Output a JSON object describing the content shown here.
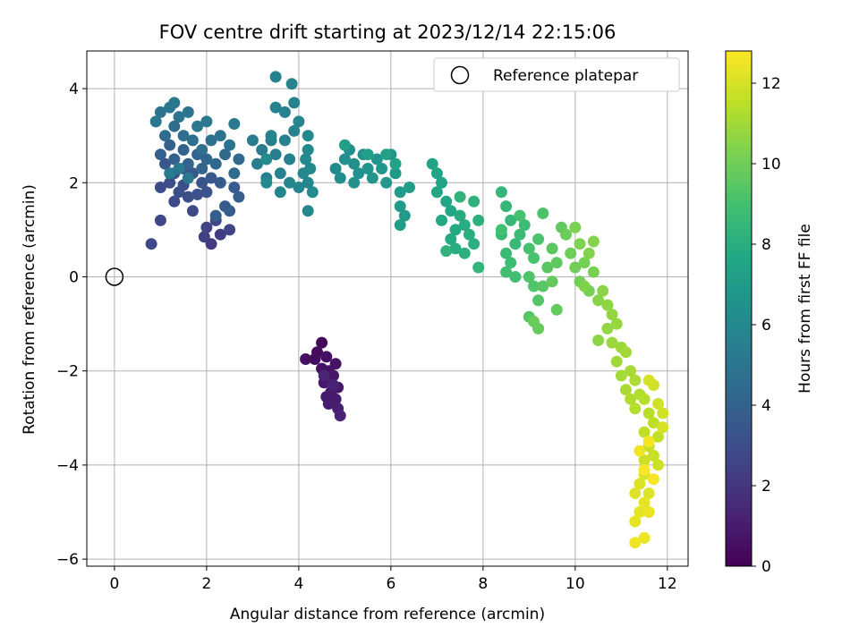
{
  "chart_data": {
    "type": "scatter",
    "title": "FOV centre drift starting at 2023/12/14 22:15:06",
    "xlabel": "Angular distance from reference (arcmin)",
    "ylabel": "Rotation from reference (arcmin)",
    "xlim": [
      -0.6,
      12.45
    ],
    "ylim": [
      -6.15,
      4.8
    ],
    "xticks": [
      0,
      2,
      4,
      6,
      8,
      10,
      12
    ],
    "yticks": [
      -6,
      -4,
      -2,
      0,
      2,
      4
    ],
    "grid": true,
    "legend": {
      "placement": "top-right",
      "entries": [
        "Reference platepar"
      ]
    },
    "reference_point": {
      "x": 0,
      "y": 0,
      "marker": "open-circle",
      "label": "Reference platepar"
    },
    "colorbar": {
      "label": "Hours from first FF file",
      "colormap": "viridis",
      "range": [
        0,
        12.8
      ],
      "ticks": [
        0,
        2,
        4,
        6,
        8,
        10,
        12
      ]
    },
    "points": [
      [
        4.5,
        -1.4,
        0.3
      ],
      [
        4.4,
        -1.6,
        0.4
      ],
      [
        4.35,
        -1.75,
        0.45
      ],
      [
        4.6,
        -1.7,
        0.5
      ],
      [
        4.15,
        -1.75,
        0.55
      ],
      [
        4.5,
        -1.95,
        0.6
      ],
      [
        4.8,
        -1.85,
        0.65
      ],
      [
        4.65,
        -2.0,
        0.7
      ],
      [
        4.75,
        -2.1,
        0.75
      ],
      [
        4.55,
        -2.25,
        0.8
      ],
      [
        4.85,
        -2.35,
        0.85
      ],
      [
        4.7,
        -2.45,
        0.9
      ],
      [
        4.6,
        -2.55,
        0.95
      ],
      [
        4.8,
        -2.6,
        1.0
      ],
      [
        4.65,
        -2.7,
        1.05
      ],
      [
        4.85,
        -2.8,
        1.1
      ],
      [
        4.9,
        -2.95,
        1.2
      ],
      [
        4.75,
        -2.3,
        1.25
      ],
      [
        4.55,
        -2.1,
        1.3
      ],
      [
        2.1,
        0.7,
        2.2
      ],
      [
        2.3,
        0.9,
        2.3
      ],
      [
        1.95,
        0.85,
        2.4
      ],
      [
        2.0,
        1.05,
        2.5
      ],
      [
        2.5,
        1.0,
        2.55
      ],
      [
        2.2,
        1.2,
        2.6
      ],
      [
        1.0,
        1.2,
        2.7
      ],
      [
        0.8,
        0.7,
        2.75
      ],
      [
        1.7,
        1.4,
        2.8
      ],
      [
        1.3,
        1.6,
        2.85
      ],
      [
        1.0,
        1.9,
        2.9
      ],
      [
        1.2,
        2.0,
        3.0
      ],
      [
        1.4,
        1.8,
        3.05
      ],
      [
        1.6,
        1.7,
        3.1
      ],
      [
        1.5,
        1.95,
        3.15
      ],
      [
        1.8,
        1.75,
        3.2
      ],
      [
        2.0,
        1.8,
        3.25
      ],
      [
        1.9,
        2.0,
        3.3
      ],
      [
        1.3,
        2.2,
        3.35
      ],
      [
        1.1,
        2.4,
        3.4
      ],
      [
        1.5,
        2.3,
        3.45
      ],
      [
        1.7,
        2.2,
        3.5
      ],
      [
        2.1,
        2.1,
        3.55
      ],
      [
        2.3,
        2.0,
        3.6
      ],
      [
        2.6,
        1.9,
        3.65
      ],
      [
        2.4,
        1.5,
        3.7
      ],
      [
        2.5,
        1.4,
        3.75
      ],
      [
        2.2,
        1.3,
        3.8
      ],
      [
        2.7,
        1.7,
        3.85
      ],
      [
        1.0,
        2.6,
        3.9
      ],
      [
        1.2,
        2.8,
        3.95
      ],
      [
        1.3,
        2.5,
        4.0
      ],
      [
        1.5,
        2.7,
        4.05
      ],
      [
        1.6,
        2.4,
        4.1
      ],
      [
        1.8,
        2.6,
        4.15
      ],
      [
        1.9,
        2.3,
        4.2
      ],
      [
        2.0,
        2.5,
        4.25
      ],
      [
        2.2,
        2.4,
        4.3
      ],
      [
        2.4,
        2.6,
        4.35
      ],
      [
        2.6,
        2.2,
        4.4
      ],
      [
        2.7,
        2.5,
        4.45
      ],
      [
        1.1,
        3.0,
        4.5
      ],
      [
        1.3,
        3.2,
        4.55
      ],
      [
        1.5,
        3.0,
        4.6
      ],
      [
        1.7,
        2.9,
        4.65
      ],
      [
        1.9,
        2.7,
        4.7
      ],
      [
        2.1,
        2.9,
        4.75
      ],
      [
        2.3,
        3.0,
        4.8
      ],
      [
        2.5,
        2.8,
        4.85
      ],
      [
        1.0,
        3.5,
        4.9
      ],
      [
        1.2,
        3.6,
        4.95
      ],
      [
        1.4,
        3.4,
        5.0
      ],
      [
        1.6,
        3.5,
        5.0
      ],
      [
        1.3,
        3.7,
        5.05
      ],
      [
        0.9,
        3.3,
        5.05
      ],
      [
        1.8,
        3.2,
        5.1
      ],
      [
        2.0,
        3.3,
        5.1
      ],
      [
        2.6,
        3.25,
        5.15
      ],
      [
        1.4,
        2.3,
        5.2
      ],
      [
        1.6,
        2.1,
        5.2
      ],
      [
        1.2,
        2.2,
        5.25
      ],
      [
        3.0,
        2.9,
        5.3
      ],
      [
        3.2,
        2.7,
        5.35
      ],
      [
        3.1,
        2.4,
        5.4
      ],
      [
        3.3,
        2.1,
        5.45
      ],
      [
        3.4,
        2.9,
        5.5
      ],
      [
        3.5,
        2.6,
        5.5
      ],
      [
        3.6,
        2.2,
        5.55
      ],
      [
        3.8,
        2.5,
        5.55
      ],
      [
        3.7,
        2.9,
        5.6
      ],
      [
        3.9,
        3.1,
        5.6
      ],
      [
        3.5,
        3.6,
        5.65
      ],
      [
        3.7,
        3.5,
        5.65
      ],
      [
        3.9,
        3.7,
        5.7
      ],
      [
        3.5,
        4.25,
        5.7
      ],
      [
        3.85,
        4.1,
        5.75
      ],
      [
        4.0,
        3.3,
        5.75
      ],
      [
        3.4,
        3.0,
        5.8
      ],
      [
        3.6,
        1.8,
        5.8
      ],
      [
        3.8,
        2.0,
        5.85
      ],
      [
        4.0,
        1.9,
        5.85
      ],
      [
        4.2,
        2.0,
        5.9
      ],
      [
        4.1,
        2.2,
        5.9
      ],
      [
        4.25,
        2.3,
        5.95
      ],
      [
        4.2,
        1.4,
        5.95
      ],
      [
        4.2,
        3.0,
        6.0
      ],
      [
        4.2,
        2.7,
        6.0
      ],
      [
        4.15,
        2.5,
        6.05
      ],
      [
        4.3,
        1.8,
        6.1
      ],
      [
        3.3,
        2.0,
        6.1
      ],
      [
        3.3,
        2.5,
        6.15
      ],
      [
        4.8,
        2.3,
        6.2
      ],
      [
        4.9,
        2.1,
        6.25
      ],
      [
        5.0,
        2.5,
        6.3
      ],
      [
        5.1,
        2.7,
        6.35
      ],
      [
        5.2,
        2.4,
        6.4
      ],
      [
        5.3,
        2.2,
        6.45
      ],
      [
        5.2,
        2.0,
        6.5
      ],
      [
        5.4,
        2.6,
        6.55
      ],
      [
        5.5,
        2.3,
        6.6
      ],
      [
        5.6,
        2.1,
        6.65
      ],
      [
        5.7,
        2.5,
        6.7
      ],
      [
        5.8,
        2.3,
        6.75
      ],
      [
        5.9,
        2.0,
        6.8
      ],
      [
        6.0,
        2.6,
        6.85
      ],
      [
        6.1,
        2.2,
        6.9
      ],
      [
        6.2,
        1.8,
        6.95
      ],
      [
        6.2,
        1.5,
        7.0
      ],
      [
        6.3,
        1.3,
        7.05
      ],
      [
        6.2,
        1.1,
        7.1
      ],
      [
        6.4,
        1.9,
        7.15
      ],
      [
        5.0,
        2.8,
        7.2
      ],
      [
        5.5,
        2.6,
        7.25
      ],
      [
        5.9,
        2.6,
        7.3
      ],
      [
        6.1,
        2.4,
        7.35
      ],
      [
        6.9,
        2.4,
        7.4
      ],
      [
        7.0,
        2.2,
        7.45
      ],
      [
        7.1,
        2.0,
        7.5
      ],
      [
        7.0,
        1.8,
        7.55
      ],
      [
        7.2,
        1.6,
        7.6
      ],
      [
        7.3,
        1.4,
        7.65
      ],
      [
        7.1,
        1.2,
        7.7
      ],
      [
        7.4,
        1.0,
        7.75
      ],
      [
        7.3,
        0.8,
        7.8
      ],
      [
        7.5,
        1.3,
        7.85
      ],
      [
        7.6,
        1.1,
        7.9
      ],
      [
        7.4,
        0.6,
        7.95
      ],
      [
        7.7,
        0.9,
        8.0
      ],
      [
        7.8,
        0.7,
        8.05
      ],
      [
        7.6,
        0.5,
        8.1
      ],
      [
        7.9,
        1.2,
        8.15
      ],
      [
        7.8,
        1.6,
        8.2
      ],
      [
        7.5,
        1.7,
        8.25
      ],
      [
        7.2,
        0.55,
        8.3
      ],
      [
        7.9,
        0.2,
        8.35
      ],
      [
        8.4,
        1.8,
        8.4
      ],
      [
        8.5,
        1.5,
        8.45
      ],
      [
        8.6,
        1.2,
        8.5
      ],
      [
        8.4,
        0.9,
        8.55
      ],
      [
        8.7,
        0.7,
        8.6
      ],
      [
        8.5,
        0.5,
        8.65
      ],
      [
        8.8,
        0.9,
        8.7
      ],
      [
        8.9,
        1.1,
        8.75
      ],
      [
        8.6,
        0.3,
        8.8
      ],
      [
        8.7,
        0.0,
        8.85
      ],
      [
        8.5,
        0.1,
        8.9
      ],
      [
        8.4,
        1.0,
        8.95
      ],
      [
        8.8,
        1.3,
        9.0
      ],
      [
        9.0,
        0.6,
        9.05
      ],
      [
        9.1,
        0.4,
        9.1
      ],
      [
        9.2,
        0.8,
        9.15
      ],
      [
        9.3,
        1.35,
        9.2
      ],
      [
        9.0,
        0.0,
        9.25
      ],
      [
        9.1,
        -0.2,
        9.3
      ],
      [
        9.2,
        -0.5,
        9.35
      ],
      [
        9.0,
        -0.85,
        9.4
      ],
      [
        9.3,
        -0.2,
        9.45
      ],
      [
        9.4,
        0.2,
        9.5
      ],
      [
        9.5,
        0.6,
        9.55
      ],
      [
        9.6,
        0.3,
        9.6
      ],
      [
        9.7,
        1.05,
        9.65
      ],
      [
        9.5,
        -0.1,
        9.7
      ],
      [
        9.6,
        -0.7,
        9.75
      ],
      [
        9.2,
        -1.1,
        9.8
      ],
      [
        9.1,
        -0.95,
        9.85
      ],
      [
        9.8,
        0.9,
        9.9
      ],
      [
        9.9,
        0.5,
        9.95
      ],
      [
        10.0,
        0.2,
        10.0
      ],
      [
        10.1,
        -0.1,
        10.05
      ],
      [
        10.2,
        0.3,
        10.1
      ],
      [
        10.3,
        -0.3,
        10.15
      ],
      [
        10.4,
        0.1,
        10.2
      ],
      [
        10.0,
        1.05,
        10.25
      ],
      [
        10.1,
        0.7,
        10.3
      ],
      [
        10.2,
        -0.2,
        10.35
      ],
      [
        10.3,
        0.5,
        10.4
      ],
      [
        10.4,
        0.75,
        10.45
      ],
      [
        10.5,
        -0.5,
        10.5
      ],
      [
        10.6,
        -0.3,
        10.55
      ],
      [
        10.5,
        -1.35,
        10.6
      ],
      [
        10.7,
        -0.6,
        10.65
      ],
      [
        10.8,
        -0.8,
        10.7
      ],
      [
        10.7,
        -1.1,
        10.75
      ],
      [
        10.9,
        -1.0,
        10.8
      ],
      [
        10.8,
        -1.4,
        10.85
      ],
      [
        11.0,
        -1.5,
        10.9
      ],
      [
        10.9,
        -1.8,
        10.95
      ],
      [
        11.1,
        -1.6,
        11.0
      ],
      [
        11.0,
        -2.1,
        11.05
      ],
      [
        11.2,
        -2.0,
        11.1
      ],
      [
        11.1,
        -2.4,
        11.15
      ],
      [
        11.3,
        -2.2,
        11.2
      ],
      [
        11.2,
        -2.6,
        11.25
      ],
      [
        11.4,
        -2.5,
        11.3
      ],
      [
        11.3,
        -2.8,
        11.35
      ],
      [
        11.5,
        -2.6,
        11.4
      ],
      [
        11.6,
        -2.9,
        11.45
      ],
      [
        11.7,
        -3.1,
        11.5
      ],
      [
        11.5,
        -3.3,
        11.55
      ],
      [
        11.8,
        -3.4,
        11.6
      ],
      [
        11.6,
        -3.6,
        11.65
      ],
      [
        11.7,
        -3.8,
        11.7
      ],
      [
        11.5,
        -3.9,
        11.75
      ],
      [
        11.8,
        -4.0,
        11.8
      ],
      [
        11.7,
        -2.3,
        11.85
      ],
      [
        11.8,
        -2.7,
        11.9
      ],
      [
        11.9,
        -2.9,
        11.95
      ],
      [
        11.6,
        -2.2,
        12.0
      ],
      [
        11.9,
        -3.2,
        12.0
      ],
      [
        11.5,
        -4.2,
        12.05
      ],
      [
        11.4,
        -4.4,
        12.1
      ],
      [
        11.6,
        -4.6,
        12.15
      ],
      [
        11.3,
        -4.6,
        12.2
      ],
      [
        11.5,
        -4.8,
        12.25
      ],
      [
        11.4,
        -5.0,
        12.3
      ],
      [
        11.3,
        -5.2,
        12.35
      ],
      [
        11.6,
        -5.0,
        12.4
      ],
      [
        11.5,
        -5.55,
        12.45
      ],
      [
        11.3,
        -5.65,
        12.5
      ],
      [
        11.4,
        -3.7,
        12.55
      ],
      [
        11.6,
        -3.5,
        12.6
      ],
      [
        11.5,
        -4.1,
        12.65
      ],
      [
        11.7,
        -4.3,
        12.7
      ]
    ]
  }
}
